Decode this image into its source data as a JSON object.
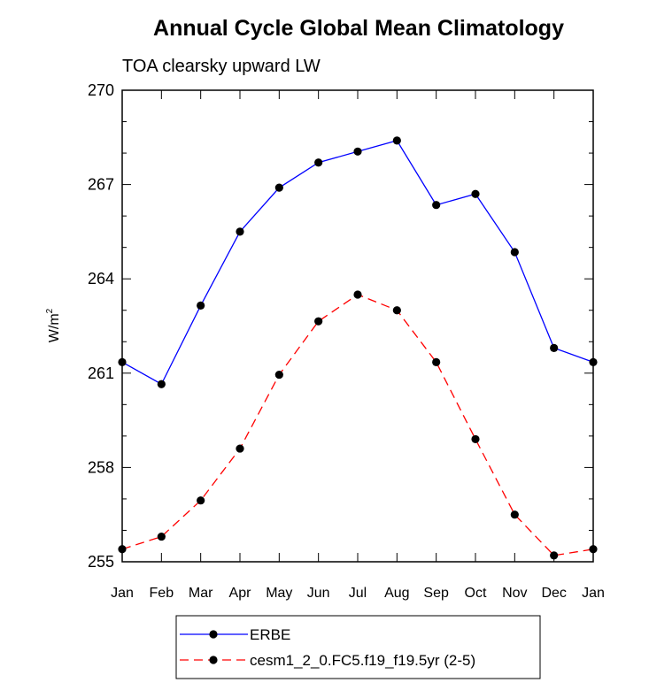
{
  "chart_data": {
    "type": "line",
    "title": "Annual Cycle Global Mean Climatology",
    "subtitle": "TOA clearsky upward LW",
    "ylabel_base": "W/m",
    "ylabel_sup": "2",
    "xlabel": "",
    "categories": [
      "Jan",
      "Feb",
      "Mar",
      "Apr",
      "May",
      "Jun",
      "Jul",
      "Aug",
      "Sep",
      "Oct",
      "Nov",
      "Dec",
      "Jan"
    ],
    "ylim": [
      255,
      270
    ],
    "yticks": [
      "255",
      "258",
      "261",
      "264",
      "267",
      "270"
    ],
    "grid": false,
    "legend_position": "bottom-center",
    "series": [
      {
        "name": "ERBE",
        "color": "#0000ff",
        "line_style": "solid",
        "marker": "circle",
        "values": [
          261.35,
          260.65,
          263.15,
          265.5,
          266.9,
          267.7,
          268.05,
          268.4,
          266.35,
          266.7,
          264.85,
          261.8,
          261.35
        ]
      },
      {
        "name": "cesm1_2_0.FC5.f19_f19.5yr (2-5)",
        "color": "#ff0000",
        "line_style": "dashed",
        "marker": "circle",
        "values": [
          255.4,
          255.8,
          256.95,
          258.6,
          260.95,
          262.65,
          263.5,
          263.0,
          261.35,
          258.9,
          256.5,
          255.2,
          255.4
        ]
      }
    ]
  }
}
